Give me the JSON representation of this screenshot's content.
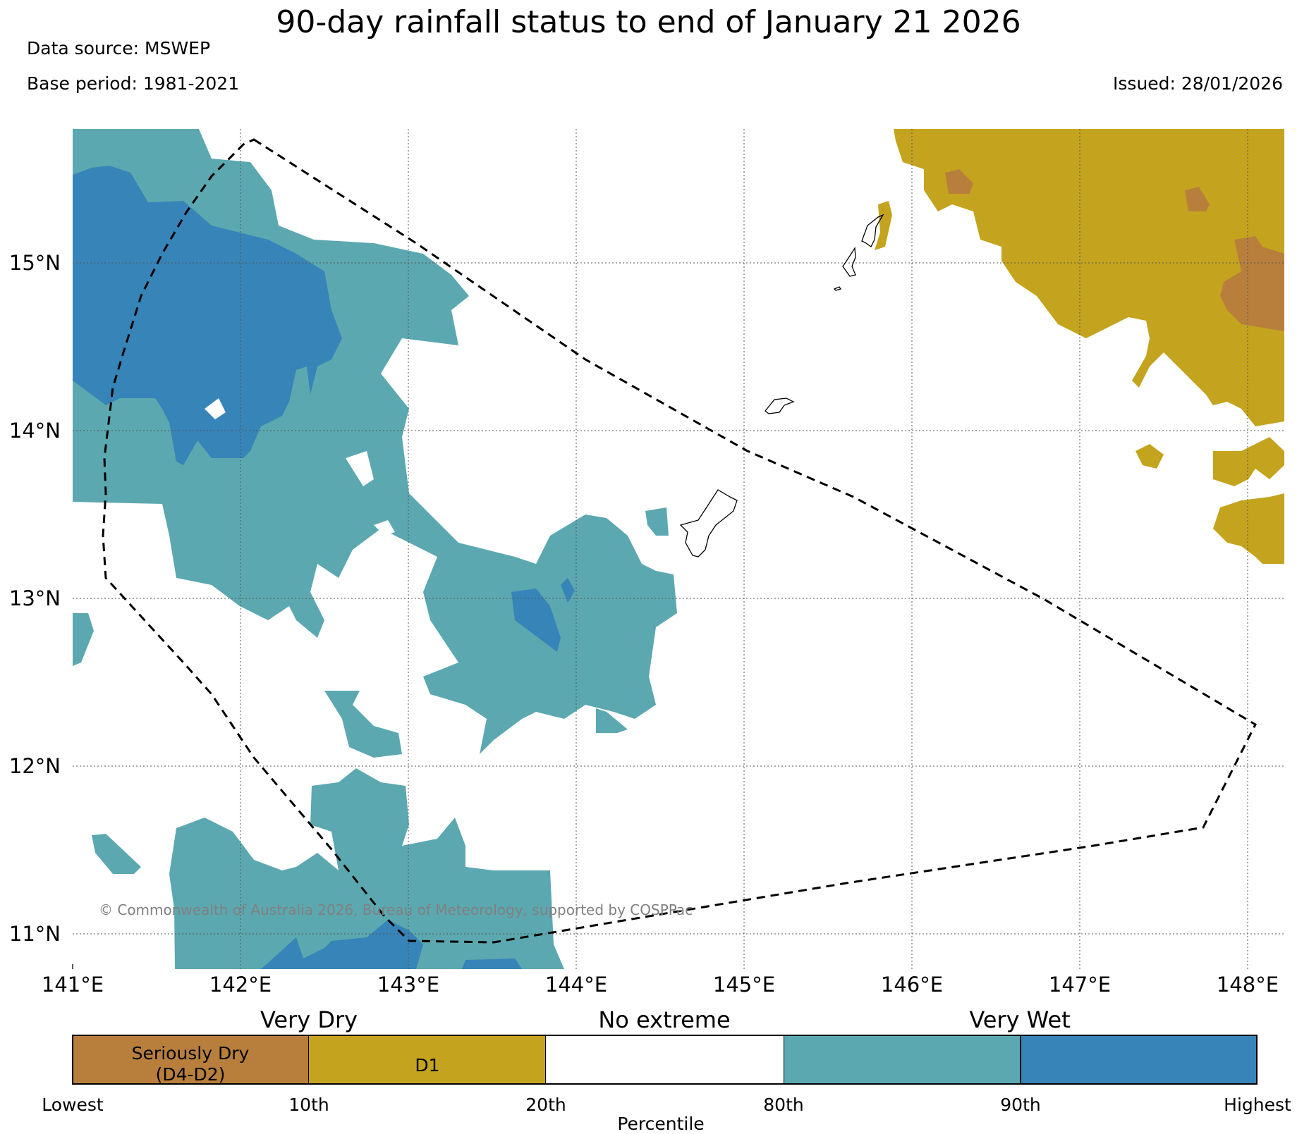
{
  "header": {
    "title": "90-day rainfall status to end of January 21 2026",
    "data_source": "Data source: MSWEP",
    "base_period": "Base period: 1981-2021",
    "issued": "Issued: 28/01/2026"
  },
  "map": {
    "x_ticks": [
      "141°E",
      "142°E",
      "143°E",
      "144°E",
      "145°E",
      "146°E",
      "147°E",
      "148°E"
    ],
    "y_ticks": [
      "15°N",
      "14°N",
      "13°N",
      "12°N",
      "11°N"
    ],
    "copyright": "© Commonwealth of Australia 2026, Bureau of Meteorology, supported by COSPPac",
    "colors": {
      "seriously_dry": "#b87f3c",
      "d1": "#c4a41e",
      "no_extreme": "#ffffff",
      "very_wet_80": "#5ca8b0",
      "very_wet_90": "#3784b8"
    }
  },
  "legend": {
    "headings": [
      "Very Dry",
      "No extreme",
      "Very Wet"
    ],
    "segments": [
      {
        "line1": "Seriously Dry",
        "line2": "(D4-D2)",
        "color": "#b87f3c"
      },
      {
        "line1": "D1",
        "line2": "",
        "color": "#c4a41e"
      },
      {
        "line1": "",
        "line2": "",
        "color": "#ffffff"
      },
      {
        "line1": "",
        "line2": "",
        "color": "#5ca8b0"
      },
      {
        "line1": "",
        "line2": "",
        "color": "#3784b8"
      }
    ],
    "percentiles": [
      "Lowest",
      "10th",
      "20th",
      "80th",
      "90th",
      "Highest"
    ],
    "axis_label": "Percentile"
  }
}
